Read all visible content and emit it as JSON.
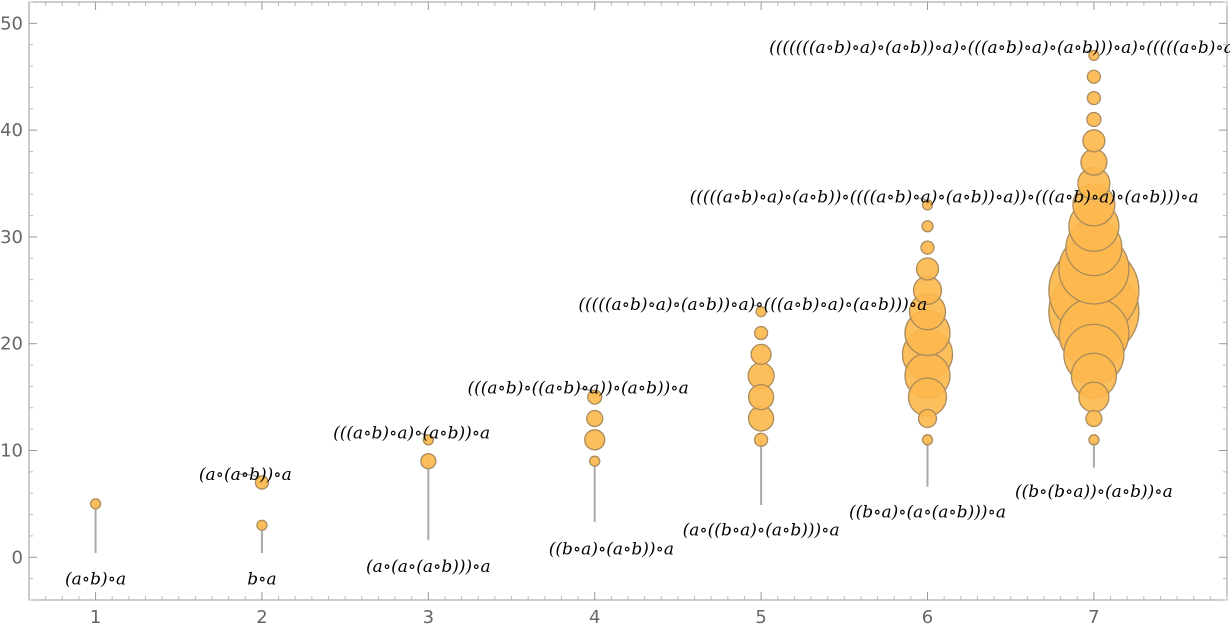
{
  "chart_data": {
    "type": "scatter",
    "title": "",
    "xlabel": "",
    "ylabel": "",
    "xlim": [
      0.6,
      7.8
    ],
    "ylim": [
      -4,
      52
    ],
    "x_ticks": [
      1,
      2,
      3,
      4,
      5,
      6,
      7
    ],
    "y_ticks": [
      0,
      10,
      20,
      30,
      40,
      50
    ],
    "grid": false,
    "colors": {
      "bubble_fill": "#FDB94E",
      "bubble_stroke": "#A98B5C",
      "stem": "#AAAAAA",
      "frame": "#999999"
    },
    "series": [
      {
        "x": 1,
        "points": [
          {
            "y": 5,
            "size": 1
          }
        ]
      },
      {
        "x": 2,
        "points": [
          {
            "y": 3,
            "size": 1
          },
          {
            "y": 7,
            "size": 1.3
          }
        ]
      },
      {
        "x": 3,
        "points": [
          {
            "y": 9,
            "size": 1.5
          },
          {
            "y": 11,
            "size": 1
          }
        ]
      },
      {
        "x": 4,
        "points": [
          {
            "y": 9,
            "size": 1
          },
          {
            "y": 11,
            "size": 2
          },
          {
            "y": 13,
            "size": 1.6
          },
          {
            "y": 15,
            "size": 1.4
          }
        ]
      },
      {
        "x": 5,
        "points": [
          {
            "y": 11,
            "size": 1.3
          },
          {
            "y": 13,
            "size": 2.5
          },
          {
            "y": 15,
            "size": 2.5
          },
          {
            "y": 17,
            "size": 2.6
          },
          {
            "y": 19,
            "size": 2
          },
          {
            "y": 21,
            "size": 1.3
          },
          {
            "y": 23,
            "size": 1
          }
        ]
      },
      {
        "x": 6,
        "points": [
          {
            "y": 11,
            "size": 1
          },
          {
            "y": 13,
            "size": 1.8
          },
          {
            "y": 15,
            "size": 3.8
          },
          {
            "y": 17,
            "size": 4.5
          },
          {
            "y": 19,
            "size": 5
          },
          {
            "y": 21,
            "size": 4.5
          },
          {
            "y": 23,
            "size": 3.6
          },
          {
            "y": 25,
            "size": 2.8
          },
          {
            "y": 27,
            "size": 2.2
          },
          {
            "y": 29,
            "size": 1.3
          },
          {
            "y": 31,
            "size": 1.1
          },
          {
            "y": 33,
            "size": 1
          }
        ]
      },
      {
        "x": 7,
        "points": [
          {
            "y": 11,
            "size": 1
          },
          {
            "y": 13,
            "size": 1.6
          },
          {
            "y": 15,
            "size": 3
          },
          {
            "y": 17,
            "size": 4.5
          },
          {
            "y": 19,
            "size": 6
          },
          {
            "y": 21,
            "size": 7
          },
          {
            "y": 23,
            "size": 9
          },
          {
            "y": 25,
            "size": 9
          },
          {
            "y": 27,
            "size": 7
          },
          {
            "y": 29,
            "size": 5.6
          },
          {
            "y": 31,
            "size": 5
          },
          {
            "y": 33,
            "size": 4.2
          },
          {
            "y": 35,
            "size": 3.2
          },
          {
            "y": 37,
            "size": 2.6
          },
          {
            "y": 39,
            "size": 2.2
          },
          {
            "y": 41,
            "size": 1.4
          },
          {
            "y": 43,
            "size": 1.3
          },
          {
            "y": 45,
            "size": 1.3
          },
          {
            "y": 47,
            "size": 1
          }
        ]
      }
    ],
    "annotations": [
      {
        "text": "(a∘b)∘a",
        "x": 1,
        "y": -2
      },
      {
        "text": "b∘a",
        "x": 2,
        "y": -2
      },
      {
        "text": "(a∘(a∘b))∘a",
        "x": 1.9,
        "y": 7.8
      },
      {
        "text": "(a∘(a∘(a∘b)))∘a",
        "x": 3,
        "y": -0.8
      },
      {
        "text": "(((a∘b)∘a)∘(a∘b))∘a",
        "x": 2.9,
        "y": 11.7
      },
      {
        "text": "((b∘a)∘(a∘b))∘a",
        "x": 4.1,
        "y": 0.8
      },
      {
        "text": "(((a∘b)∘((a∘b)∘a))∘(a∘b))∘a",
        "x": 3.9,
        "y": 15.9
      },
      {
        "text": "(a∘((b∘a)∘(a∘b)))∘a",
        "x": 5,
        "y": 2.6
      },
      {
        "text": "(((((a∘b)∘a)∘(a∘b))∘a)∘(((a∘b)∘a)∘(a∘b)))∘a",
        "x": 4.95,
        "y": 23.7
      },
      {
        "text": "((b∘a)∘(a∘(a∘b)))∘a",
        "x": 6,
        "y": 4.3
      },
      {
        "text": "(((((a∘b)∘a)∘(a∘b))∘((((a∘b)∘a)∘(a∘b))∘a))∘(((a∘b)∘a)∘(a∘b)))∘a",
        "x": 6.1,
        "y": 33.8
      },
      {
        "text": "((b∘(b∘a))∘(a∘b))∘a",
        "x": 7,
        "y": 6.2
      },
      {
        "text": "(((((((a∘b)∘a)∘(a∘b))∘a)∘(((a∘b)∘a)∘(a∘b)))∘a)∘(((((a∘b)∘a)∘(a∘b))∘a)∘(((a∘b)∘a)∘(a∘b))))∘a",
        "x": 7.25,
        "y": 47.8
      }
    ],
    "leaders": [
      {
        "from": [
          1.85,
          7.8
        ],
        "to": [
          2,
          7
        ]
      },
      {
        "from": [
          2.95,
          11.6
        ],
        "to": [
          3,
          11
        ]
      },
      {
        "from": [
          3.9,
          15.8
        ],
        "to": [
          4,
          15
        ]
      },
      {
        "from": [
          4.95,
          23.6
        ],
        "to": [
          5,
          23
        ]
      },
      {
        "from": [
          5.95,
          33.6
        ],
        "to": [
          6,
          33
        ]
      },
      {
        "from": [
          6.95,
          47.4
        ],
        "to": [
          7,
          47
        ]
      }
    ],
    "stems": [
      {
        "x": 1,
        "y0": 0.4,
        "y1": 5
      },
      {
        "x": 2,
        "y0": 0.4,
        "y1": 3
      },
      {
        "x": 3,
        "y0": 1.6,
        "y1": 9
      },
      {
        "x": 4,
        "y0": 3.3,
        "y1": 9
      },
      {
        "x": 5,
        "y0": 4.9,
        "y1": 11
      },
      {
        "x": 6,
        "y0": 6.6,
        "y1": 11
      },
      {
        "x": 7,
        "y0": 8.4,
        "y1": 11
      }
    ]
  }
}
